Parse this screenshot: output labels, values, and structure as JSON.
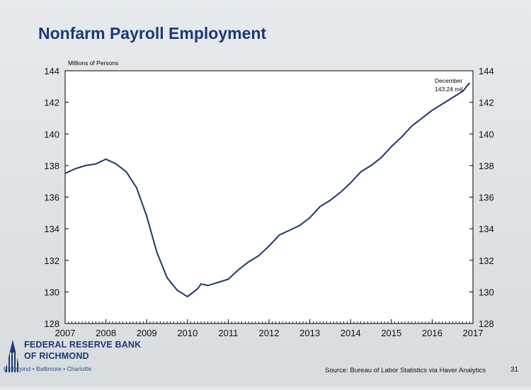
{
  "title": "Nonfarm Payroll Employment",
  "source": "Source: Bureau of Labor Statistics via Haver Analytics",
  "page_number": "31",
  "logo": {
    "line1": "FEDERAL RESERVE BANK",
    "line2": "OF RICHMOND",
    "line3": "Richmond • Baltimore • Charlotte"
  },
  "colors": {
    "title": "#1a3a78",
    "line": "#1f3763",
    "brand": "#1a3a78"
  },
  "chart_data": {
    "type": "line",
    "title": "Nonfarm Payroll Employment",
    "ylabel": "Millions of Persons",
    "xlabel": "",
    "ylim": [
      128,
      144
    ],
    "xlim": [
      2007,
      2017
    ],
    "yticks": [
      "128",
      "130",
      "132",
      "134",
      "136",
      "138",
      "140",
      "142",
      "144"
    ],
    "xticks": [
      "2007",
      "2008",
      "2009",
      "2010",
      "2011",
      "2012",
      "2013",
      "2014",
      "2015",
      "2016",
      "2017"
    ],
    "annotation": {
      "line1": "December",
      "line2": "143.24 mil."
    },
    "series": [
      {
        "x": [
          "2007-01",
          "2007-04",
          "2007-07",
          "2007-10",
          "2008-01",
          "2008-04",
          "2008-07",
          "2008-10",
          "2009-01",
          "2009-04",
          "2009-07",
          "2009-10",
          "2010-01",
          "2010-04",
          "2010-05",
          "2010-07",
          "2010-10",
          "2011-01",
          "2011-04",
          "2011-07",
          "2011-10",
          "2012-01",
          "2012-04",
          "2012-07",
          "2012-10",
          "2013-01",
          "2013-04",
          "2013-07",
          "2013-10",
          "2014-01",
          "2014-04",
          "2014-07",
          "2014-10",
          "2015-01",
          "2015-04",
          "2015-07",
          "2015-10",
          "2016-01",
          "2016-04",
          "2016-07",
          "2016-10",
          "2016-12"
        ],
        "values": [
          137.5,
          137.8,
          138.0,
          138.1,
          138.4,
          138.1,
          137.6,
          136.6,
          134.8,
          132.5,
          130.9,
          130.1,
          129.7,
          130.2,
          130.5,
          130.4,
          130.6,
          130.8,
          131.4,
          131.9,
          132.3,
          132.9,
          133.6,
          133.9,
          134.2,
          134.7,
          135.4,
          135.8,
          136.3,
          136.9,
          137.6,
          138.0,
          138.5,
          139.2,
          139.8,
          140.5,
          141.0,
          141.5,
          141.9,
          142.3,
          142.7,
          143.24
        ]
      }
    ]
  }
}
